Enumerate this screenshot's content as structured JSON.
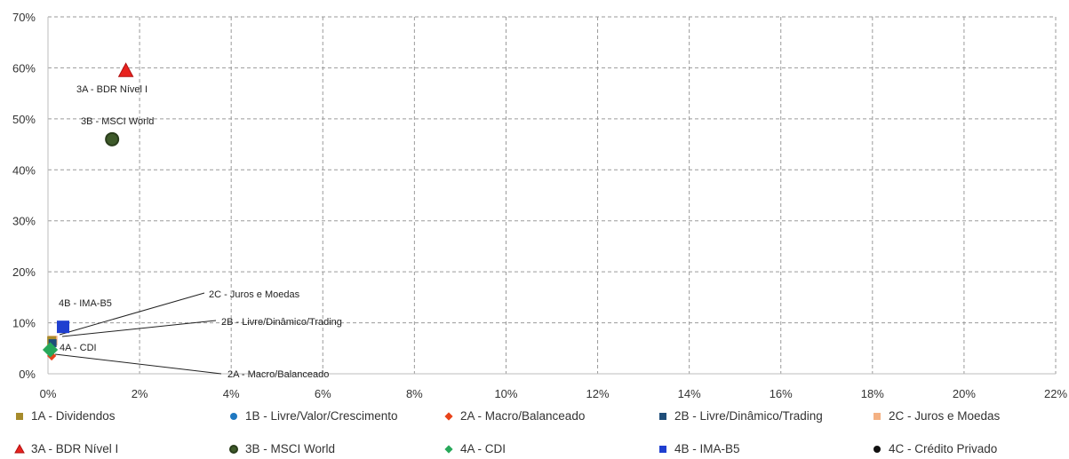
{
  "chart_data": {
    "type": "scatter",
    "xlim": [
      0,
      22
    ],
    "ylim": [
      0,
      70
    ],
    "x_ticks": [
      "0%",
      "2%",
      "4%",
      "6%",
      "8%",
      "10%",
      "12%",
      "14%",
      "16%",
      "18%",
      "20%",
      "22%"
    ],
    "y_ticks": [
      "0%",
      "10%",
      "20%",
      "30%",
      "40%",
      "50%",
      "60%",
      "70%"
    ],
    "grid": true,
    "legend_position": "bottom",
    "series": [
      {
        "name": "1A - Dividendos",
        "marker": "square",
        "color": "#A68B2C",
        "x": [
          0.08
        ],
        "y": [
          6.5
        ]
      },
      {
        "name": "1B - Livre/Valor/Crescimento",
        "marker": "circle",
        "color": "#1F78C1",
        "x": [
          0.06
        ],
        "y": [
          5.0
        ]
      },
      {
        "name": "2A - Macro/Balanceado",
        "marker": "diamond",
        "color": "#E8431A",
        "x": [
          0.08
        ],
        "y": [
          3.5
        ]
      },
      {
        "name": "2B - Livre/Dinâmico/Trading",
        "marker": "square",
        "color": "#1F4E79",
        "x": [
          0.1
        ],
        "y": [
          6.0
        ]
      },
      {
        "name": "2C - Juros e Moedas",
        "marker": "square",
        "color": "#F4B183",
        "x": [
          0.1
        ],
        "y": [
          6.5
        ]
      },
      {
        "name": "3A - BDR Nível I",
        "marker": "triangle",
        "color": "#E8221E",
        "x": [
          1.7
        ],
        "y": [
          59.5
        ]
      },
      {
        "name": "3B - MSCI World",
        "marker": "circle",
        "color": "#3E5A2A",
        "x": [
          1.4
        ],
        "y": [
          46.0
        ]
      },
      {
        "name": "4A - CDI",
        "marker": "diamond",
        "color": "#27A85A",
        "x": [
          0.05
        ],
        "y": [
          4.7
        ]
      },
      {
        "name": "4B - IMA-B5",
        "marker": "square",
        "color": "#1F3FD0",
        "x": [
          0.33
        ],
        "y": [
          9.2
        ]
      },
      {
        "name": "4C - Crédito Privado",
        "marker": "circle",
        "color": "#111111",
        "x": [
          0.06
        ],
        "y": [
          5.0
        ]
      }
    ],
    "annotations": [
      {
        "text": "3A - BDR Nível I",
        "target": "3A - BDR Nível I"
      },
      {
        "text": "3B - MSCI World",
        "target": "3B - MSCI World"
      },
      {
        "text": "4B - IMA-B5",
        "target": "4B - IMA-B5"
      },
      {
        "text": "4A - CDI",
        "target": "4A - CDI"
      },
      {
        "text": "2C - Juros e Moedas",
        "target": "2C - Juros e Moedas"
      },
      {
        "text": "2B - Livre/Dinâmico/Trading",
        "target": "2B - Livre/Dinâmico/Trading"
      },
      {
        "text": "2A - Macro/Balanceado",
        "target": "2A - Macro/Balanceado"
      }
    ]
  }
}
